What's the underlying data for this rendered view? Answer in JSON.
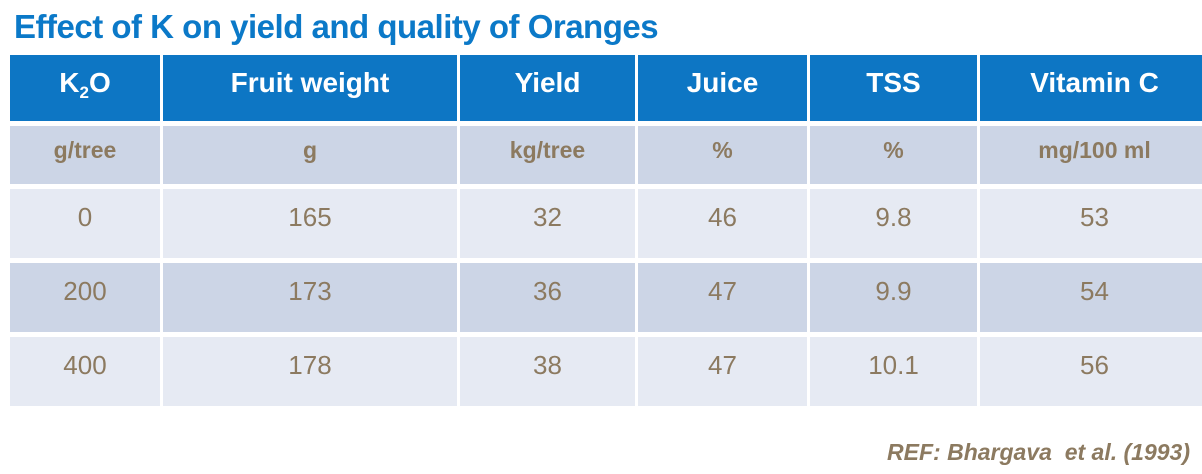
{
  "page": {
    "title": "Effect of K on yield and quality of Oranges",
    "reference": "REF: Bhargava  et al. (1993)"
  },
  "table": {
    "headers": {
      "k2o": {
        "base": "K",
        "sub": "2",
        "rest": "O"
      },
      "others": [
        "Fruit weight",
        "Yield",
        "Juice",
        "TSS",
        "Vitamin C"
      ]
    },
    "units": [
      "g/tree",
      "g",
      "kg/tree",
      "%",
      "%",
      "mg/100 ml"
    ],
    "rows": [
      [
        "0",
        "165",
        "32",
        "46",
        "9.8",
        "53"
      ],
      [
        "200",
        "173",
        "36",
        "47",
        "9.9",
        "54"
      ],
      [
        "400",
        "178",
        "38",
        "47",
        "10.1",
        "56"
      ]
    ]
  },
  "colors": {
    "title_blue": "#0b79c8",
    "header_bg": "#0d76c4",
    "header_text": "#ffffff",
    "row_light_bg": "#e6eaf3",
    "row_dark_bg": "#ccd5e6",
    "body_text_brown": "#8c7a60"
  }
}
